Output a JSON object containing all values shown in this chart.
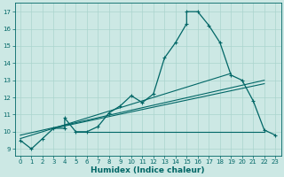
{
  "title": "",
  "xlabel": "Humidex (Indice chaleur)",
  "ylabel": "",
  "bg_color": "#cce8e4",
  "line_color": "#006666",
  "grid_color": "#aad4ce",
  "xlim": [
    -0.5,
    23.5
  ],
  "ylim": [
    8.6,
    17.5
  ],
  "yticks": [
    9,
    10,
    11,
    12,
    13,
    14,
    15,
    16,
    17
  ],
  "xticks": [
    0,
    1,
    2,
    3,
    4,
    5,
    6,
    7,
    8,
    9,
    10,
    11,
    12,
    13,
    14,
    15,
    16,
    17,
    18,
    19,
    20,
    21,
    22,
    23
  ],
  "main_x": [
    0,
    1,
    2,
    3,
    4,
    4,
    5,
    6,
    7,
    8,
    9,
    10,
    11,
    12,
    13,
    14,
    15,
    15,
    16,
    17,
    18,
    19,
    20,
    21,
    22,
    23
  ],
  "main_y": [
    9.5,
    9.0,
    9.6,
    10.2,
    10.2,
    10.8,
    10.0,
    10.0,
    10.3,
    11.1,
    11.5,
    12.1,
    11.7,
    12.2,
    14.3,
    15.2,
    16.3,
    17.0,
    17.0,
    16.2,
    15.2,
    13.3,
    13.0,
    11.8,
    10.1,
    9.8
  ],
  "line1_x": [
    0,
    19
  ],
  "line1_y": [
    9.6,
    13.4
  ],
  "line2_x": [
    0,
    22
  ],
  "line2_y": [
    9.8,
    13.0
  ],
  "line3_x": [
    3,
    22
  ],
  "line3_y": [
    10.2,
    12.8
  ],
  "line4_x": [
    5,
    22
  ],
  "line4_y": [
    10.0,
    10.0
  ]
}
